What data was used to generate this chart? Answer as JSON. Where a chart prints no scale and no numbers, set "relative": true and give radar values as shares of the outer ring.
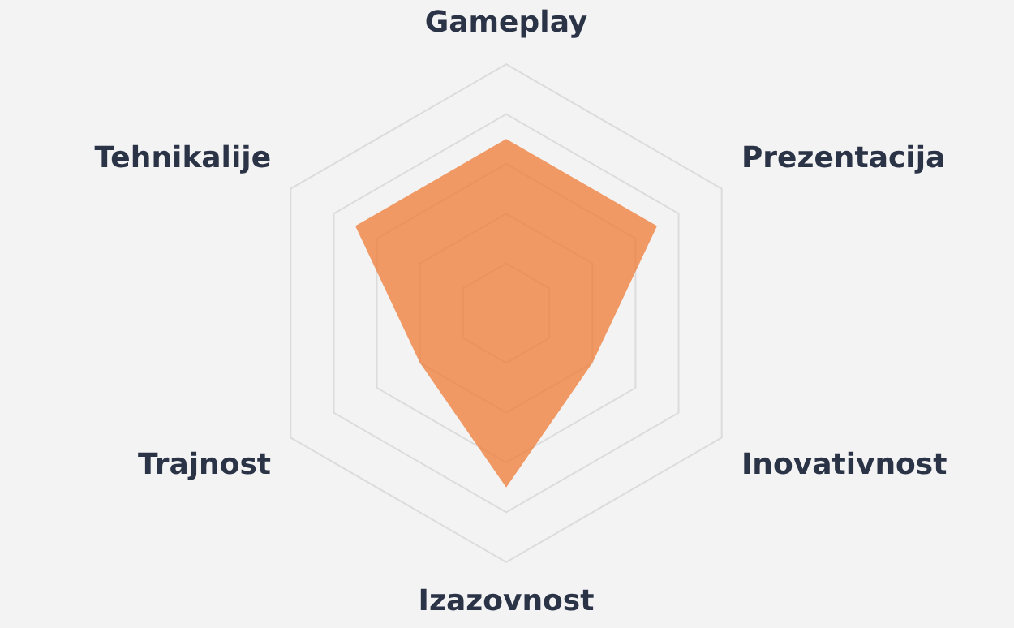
{
  "chart_data": {
    "type": "radar",
    "relative": true,
    "categories": [
      "Gameplay",
      "Prezentacija",
      "Inovativnost",
      "Izazovnost",
      "Trajnost",
      "Tehnikalije"
    ],
    "series": [
      {
        "color": "#f07f3c",
        "values": [
          0.7,
          0.7,
          0.4,
          0.7,
          0.4,
          0.7
        ]
      }
    ],
    "legend": false,
    "grid": true
  }
}
